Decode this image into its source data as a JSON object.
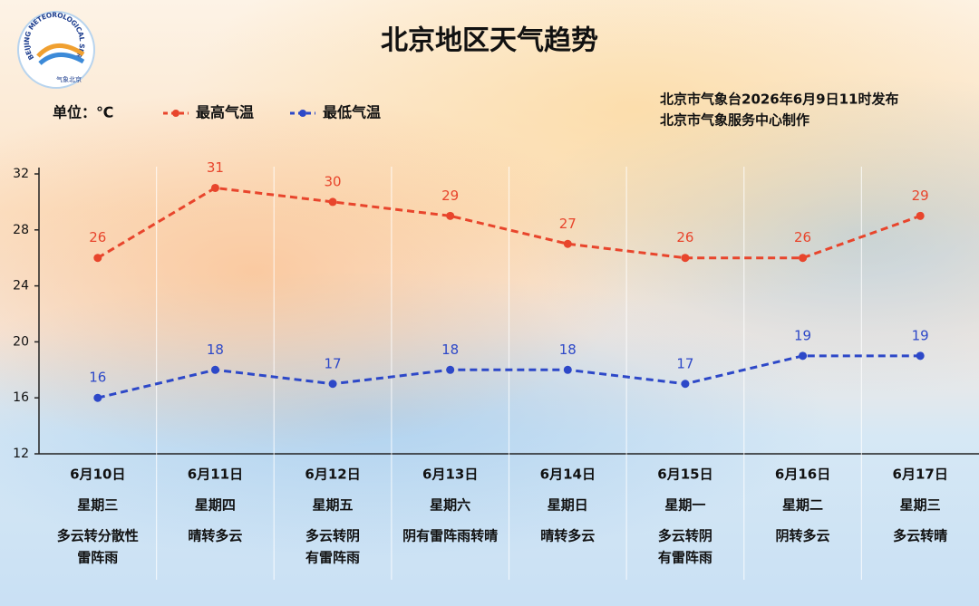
{
  "chart_data": {
    "type": "line",
    "title": "北京地区天气趋势",
    "unit": "单位：℃",
    "source": [
      "北京市气象台2026年6月9日11时发布",
      "北京市气象服务中心制作"
    ],
    "logo": {
      "ring_text": "BEIJING METEOROLOGICAL SERVICE",
      "name": "气象北京"
    },
    "categories": [
      "6月10日",
      "6月11日",
      "6月12日",
      "6月13日",
      "6月14日",
      "6月15日",
      "6月16日",
      "6月17日"
    ],
    "weekdays": [
      "星期三",
      "星期四",
      "星期五",
      "星期六",
      "星期日",
      "星期一",
      "星期二",
      "星期三"
    ],
    "weather": [
      [
        "多云转分散性",
        "雷阵雨"
      ],
      [
        "晴转多云"
      ],
      [
        "多云转阴",
        "有雷阵雨"
      ],
      [
        "阴有雷阵雨转晴"
      ],
      [
        "晴转多云"
      ],
      [
        "多云转阴",
        "有雷阵雨"
      ],
      [
        "阴转多云"
      ],
      [
        "多云转晴"
      ]
    ],
    "series": [
      {
        "name": "最高气温",
        "color": "#e8452c",
        "values": [
          26,
          31,
          30,
          29,
          27,
          26,
          26,
          29
        ]
      },
      {
        "name": "最低气温",
        "color": "#2d48c8",
        "values": [
          16,
          18,
          17,
          18,
          18,
          17,
          19,
          19
        ]
      }
    ],
    "ylim": [
      12,
      32
    ],
    "yticks": [
      12,
      16,
      20,
      24,
      28,
      32
    ]
  }
}
